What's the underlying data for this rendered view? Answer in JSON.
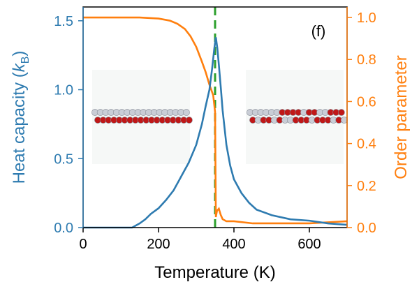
{
  "chart_data": {
    "type": "line",
    "panel_label": "(f)",
    "xlabel": "Temperature (K)",
    "ylabel_left_prefix": "Heat capacity (",
    "ylabel_left_k": "k",
    "ylabel_left_sub": "B",
    "ylabel_left_suffix": ")",
    "ylabel_right": "Order parameter",
    "xlim": [
      0,
      700
    ],
    "ylim_left": [
      0,
      1.6
    ],
    "ylim_right": [
      0,
      1.05
    ],
    "xticks": [
      0,
      200,
      400,
      600
    ],
    "xtick_labels": [
      "0",
      "200",
      "400",
      "600"
    ],
    "yticks_left": [
      0,
      0.5,
      1.0,
      1.5
    ],
    "ytick_labels_left": [
      "0.0",
      "0.5",
      "1.0",
      "1.5"
    ],
    "yticks_right": [
      0,
      0.2,
      0.4,
      0.6,
      0.8,
      1.0
    ],
    "ytick_labels_right": [
      "0.0",
      "0.2",
      "0.4",
      "0.6",
      "0.8",
      "1.0"
    ],
    "transition_temperature": 350,
    "colors": {
      "heat_capacity": "#2e7bb0",
      "order_parameter": "#ff7f0e",
      "transition_line": "#2ca02c",
      "atom_red": "#c01818",
      "atom_gray": "#c9cdd6"
    },
    "grid": false,
    "series": [
      {
        "axis": "left",
        "x": [
          0,
          60,
          100,
          130,
          150,
          165,
          180,
          200,
          220,
          240,
          260,
          280,
          300,
          315,
          325,
          335,
          342,
          348,
          352,
          356,
          360,
          365,
          370,
          380,
          390,
          400,
          420,
          440,
          460,
          500,
          550,
          600,
          650,
          700
        ],
        "values": [
          0,
          0,
          0,
          0,
          0.03,
          0.06,
          0.1,
          0.14,
          0.2,
          0.27,
          0.37,
          0.47,
          0.6,
          0.75,
          0.88,
          1.0,
          1.15,
          1.3,
          1.38,
          1.3,
          1.18,
          1.02,
          0.85,
          0.6,
          0.45,
          0.35,
          0.25,
          0.18,
          0.13,
          0.09,
          0.06,
          0.05,
          0.03,
          0.02
        ]
      },
      {
        "axis": "right",
        "x": [
          0,
          100,
          150,
          200,
          230,
          250,
          270,
          285,
          300,
          315,
          325,
          335,
          345,
          350,
          352,
          355,
          360,
          365,
          370,
          380,
          400,
          450,
          500,
          600,
          700
        ],
        "values": [
          1.0,
          1.0,
          1.0,
          0.995,
          0.985,
          0.97,
          0.945,
          0.91,
          0.86,
          0.79,
          0.74,
          0.68,
          0.63,
          0.55,
          0.05,
          0.08,
          0.09,
          0.06,
          0.04,
          0.03,
          0.03,
          0.02,
          0.02,
          0.02,
          0.03
        ]
      }
    ],
    "insets": [
      {
        "name": "low-temperature-structure",
        "top_row": [
          "gray",
          "gray",
          "gray",
          "gray",
          "gray",
          "gray",
          "gray",
          "gray",
          "gray",
          "gray",
          "gray",
          "gray",
          "gray",
          "gray",
          "gray",
          "gray",
          "gray",
          "gray"
        ],
        "bottom_row": [
          "red",
          "red",
          "red",
          "red",
          "red",
          "red",
          "red",
          "red",
          "red",
          "red",
          "red",
          "red",
          "red",
          "red",
          "red",
          "red",
          "red",
          "red"
        ]
      },
      {
        "name": "high-temperature-structure",
        "top_row": [
          "gray",
          "gray",
          "gray",
          "gray",
          "gray",
          "gray",
          "red",
          "red",
          "red",
          "red",
          "gray",
          "red",
          "red",
          "gray",
          "gray",
          "red",
          "red",
          "red"
        ],
        "bottom_row": [
          "red",
          "gray",
          "red",
          "red",
          "gray",
          "red",
          "gray",
          "gray",
          "red",
          "red",
          "red",
          "gray",
          "red",
          "red",
          "red",
          "gray",
          "red",
          "gray"
        ]
      }
    ]
  }
}
